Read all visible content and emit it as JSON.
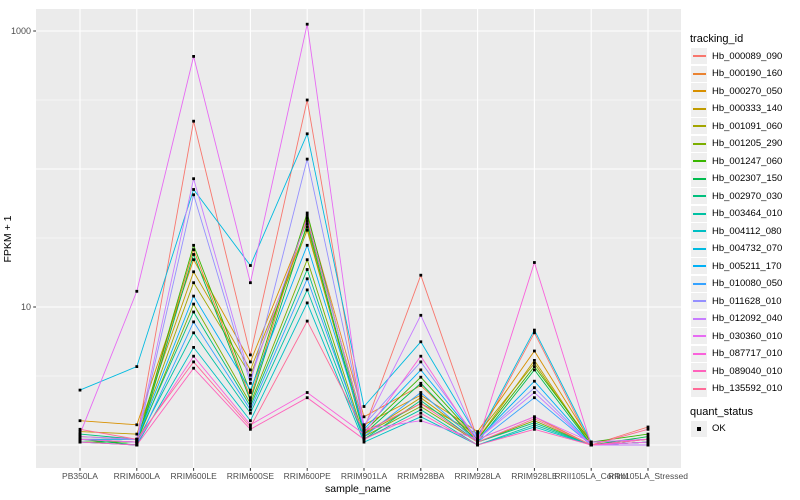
{
  "figure": {
    "y_axis": {
      "title": "FPKM + 1",
      "tick_labels": [
        "1000",
        "10"
      ],
      "tick_values": [
        1000,
        10
      ]
    },
    "x_axis": {
      "title": "sample_name"
    },
    "legend": {
      "tracking_title": "tracking_id",
      "quant_title": "quant_status",
      "quant_label": "OK"
    },
    "colors": {
      "panel_background": "#EBEBEB",
      "gridline": "#FFFFFF",
      "point": "#000000",
      "tick_text": "#4D4D4D",
      "legend_key_background": "#EFEFEF"
    }
  },
  "chart_data": {
    "type": "line",
    "title": "",
    "xlabel": "sample_name",
    "ylabel": "FPKM + 1",
    "y_scale": "log10",
    "ylim": [
      1,
      1200
    ],
    "y_ticks": [
      10,
      1000
    ],
    "grid": true,
    "legend_title": "tracking_id",
    "legend_position": "right",
    "point_legend": {
      "title": "quant_status",
      "label": "OK",
      "shape": "square",
      "color": "#000000"
    },
    "categories": [
      "PB350LA",
      "RRIM600LA",
      "RRIM600LE",
      "RRIM600SE",
      "RRIM600PE",
      "RRIM901LA",
      "RRIM928BA",
      "RRIM928LA",
      "RRIM928LE",
      "RRII105LA_Control",
      "RRII105LA_Stressed"
    ],
    "series": [
      {
        "name": "Hb_000089_090",
        "color": "#F8766D",
        "values": [
          1.1,
          1.1,
          222,
          4.5,
          316,
          1.3,
          17,
          1.1,
          6.5,
          1.0,
          1.35
        ]
      },
      {
        "name": "Hb_000190_160",
        "color": "#EA8331",
        "values": [
          1.05,
          1.05,
          26,
          2.2,
          46,
          1.6,
          2.7,
          1.1,
          1.6,
          1.0,
          1.1
        ]
      },
      {
        "name": "Hb_000270_050",
        "color": "#D89000",
        "values": [
          1.5,
          1.4,
          22,
          4.0,
          42,
          1.4,
          2.3,
          1.25,
          4.8,
          1.05,
          1.1
        ]
      },
      {
        "name": "Hb_000333_140",
        "color": "#C09B00",
        "values": [
          1.25,
          1.2,
          18,
          3.5,
          38,
          1.2,
          2.2,
          1.1,
          4.1,
          1.0,
          1.05
        ]
      },
      {
        "name": "Hb_001091_060",
        "color": "#A3A500",
        "values": [
          1.15,
          1.1,
          15,
          3.2,
          36,
          1.2,
          2.0,
          1.2,
          3.9,
          1.0,
          1.1
        ]
      },
      {
        "name": "Hb_001205_290",
        "color": "#7CAE00",
        "values": [
          1.1,
          1.05,
          10.5,
          2.0,
          22,
          1.15,
          1.9,
          1.05,
          1.5,
          1.0,
          1.05
        ]
      },
      {
        "name": "Hb_001247_060",
        "color": "#39B600",
        "values": [
          1.05,
          1.05,
          28,
          2.4,
          48,
          1.25,
          3.1,
          1.1,
          3.7,
          1.05,
          1.2
        ]
      },
      {
        "name": "Hb_002307_150",
        "color": "#00BB4E",
        "values": [
          1.1,
          1.0,
          24,
          2.1,
          40,
          1.2,
          2.8,
          1.05,
          3.5,
          1.0,
          1.15
        ]
      },
      {
        "name": "Hb_002970_030",
        "color": "#00BF7D",
        "values": [
          1.2,
          1.1,
          9.2,
          1.9,
          18.7,
          1.1,
          2.1,
          1.05,
          1.45,
          1.0,
          1.05
        ]
      },
      {
        "name": "Hb_003464_010",
        "color": "#00C1A3",
        "values": [
          1.1,
          1.05,
          6.5,
          1.7,
          13.3,
          1.1,
          1.8,
          1.0,
          1.4,
          1.0,
          1.0
        ]
      },
      {
        "name": "Hb_004112_080",
        "color": "#00BFC4",
        "values": [
          1.05,
          1.0,
          5.1,
          1.5,
          10.7,
          1.05,
          1.6,
          1.0,
          1.35,
          1.0,
          1.05
        ]
      },
      {
        "name": "Hb_004732_070",
        "color": "#00BAE0",
        "values": [
          2.5,
          3.7,
          71,
          20,
          180,
          1.9,
          5.6,
          1.15,
          6.8,
          1.05,
          1.1
        ]
      },
      {
        "name": "Hb_005211_170",
        "color": "#00B0F6",
        "values": [
          1.1,
          1.1,
          12,
          2.5,
          28,
          1.3,
          3.5,
          1.1,
          2.9,
          1.0,
          1.05
        ]
      },
      {
        "name": "Hb_010080_050",
        "color": "#35A2FF",
        "values": [
          1.05,
          1.0,
          7.8,
          1.8,
          16,
          1.15,
          2.4,
          1.05,
          2.2,
          1.0,
          1.0
        ]
      },
      {
        "name": "Hb_011628_010",
        "color": "#9590FF",
        "values": [
          1.1,
          1.05,
          65,
          2.8,
          118,
          1.4,
          4.0,
          1.1,
          2.6,
          1.0,
          1.05
        ]
      },
      {
        "name": "Hb_012092_040",
        "color": "#C77CFF",
        "values": [
          1.15,
          1.1,
          85,
          3.0,
          44,
          1.35,
          8.7,
          1.1,
          2.4,
          1.0,
          1.0
        ]
      },
      {
        "name": "Hb_030360_010",
        "color": "#E76BF3",
        "values": [
          1.2,
          13,
          655,
          15,
          1120,
          1.3,
          1.5,
          1.1,
          1.6,
          1.05,
          1.1
        ]
      },
      {
        "name": "Hb_087717_010",
        "color": "#FA62DB",
        "values": [
          1.1,
          1.05,
          4.4,
          1.4,
          2.4,
          1.2,
          4.4,
          1.05,
          21,
          1.0,
          1.05
        ]
      },
      {
        "name": "Hb_089040_010",
        "color": "#FF62BC",
        "values": [
          1.05,
          1.0,
          3.6,
          1.3,
          2.2,
          1.1,
          1.7,
          1.0,
          1.3,
          1.0,
          1.1
        ]
      },
      {
        "name": "Hb_135592_010",
        "color": "#FF6A98",
        "values": [
          1.3,
          1.1,
          4.0,
          1.35,
          7.9,
          1.25,
          2.0,
          1.05,
          1.55,
          1.0,
          1.3
        ]
      }
    ]
  }
}
